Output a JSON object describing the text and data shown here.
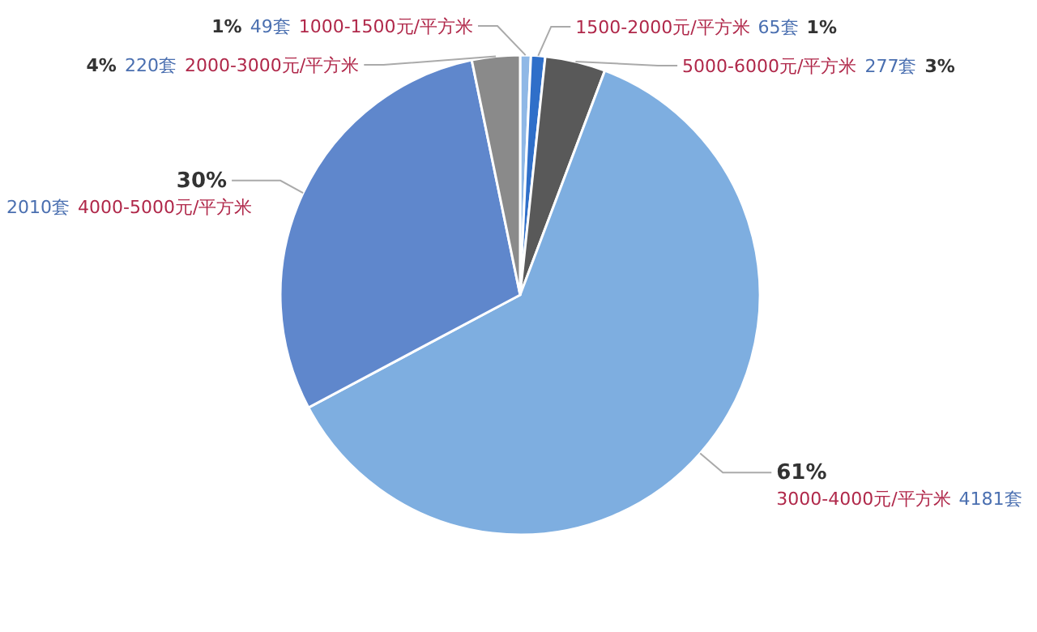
{
  "chart_data": {
    "type": "pie",
    "categories": [
      "1000-1500元/平方米",
      "1500-2000元/平方米",
      "5000-6000元/平方米",
      "3000-4000元/平方米",
      "4000-5000元/平方米",
      "2000-3000元/平方米"
    ],
    "values": [
      49,
      65,
      277,
      4181,
      2010,
      220
    ],
    "value_labels": [
      "49套",
      "65套",
      "277套",
      "4181套",
      "2010套",
      "220套"
    ],
    "colors": [
      "#8fb8e6",
      "#2f6fc9",
      "#595959",
      "#7eaee0",
      "#5f87cc",
      "#8a8a8a"
    ],
    "annotations": [
      {
        "text": "1%",
        "x": "1000-1500元/平方米"
      },
      {
        "text": "1%",
        "x": "1500-2000元/平方米"
      },
      {
        "text": "3%",
        "x": "5000-6000元/平方米"
      },
      {
        "text": "61%",
        "x": "3000-4000元/平方米"
      },
      {
        "text": "30%",
        "x": "4000-5000元/平方米"
      },
      {
        "text": "4%",
        "x": "2000-3000元/平方米"
      }
    ]
  }
}
